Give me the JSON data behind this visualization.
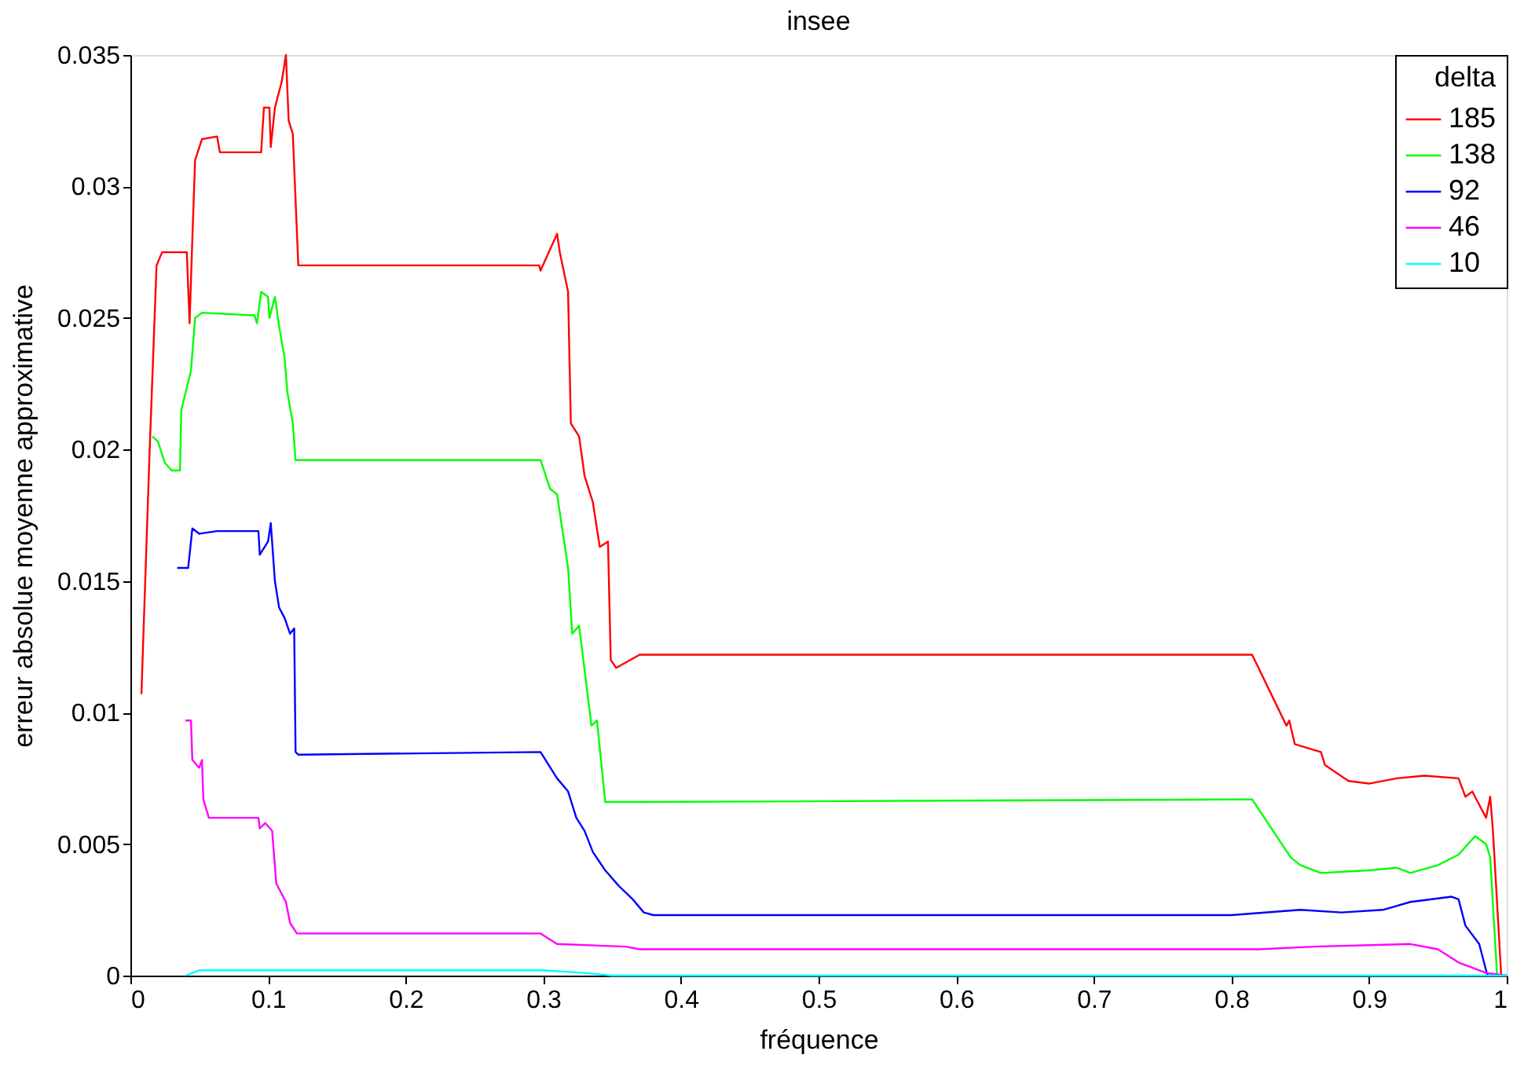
{
  "chart_data": {
    "type": "line",
    "title": "insee",
    "xlabel": "fréquence",
    "ylabel": "erreur absolue moyenne approximative",
    "legend_title": "delta",
    "legend": "top right",
    "grid": false,
    "line_style": "solid",
    "marker": "none",
    "xlim": [
      0,
      1
    ],
    "ylim": [
      0,
      0.035
    ],
    "xticks": [
      0,
      0.1,
      0.2,
      0.3,
      0.4,
      0.5,
      0.6,
      0.7,
      0.8,
      0.9,
      1
    ],
    "yticks": [
      0,
      0.005,
      0.01,
      0.015,
      0.02,
      0.025,
      0.03,
      0.035
    ],
    "series": [
      {
        "name": "185",
        "color": "#ff0000",
        "x": [
          0.008,
          0.014,
          0.019,
          0.023,
          0.041,
          0.043,
          0.045,
          0.047,
          0.052,
          0.063,
          0.065,
          0.095,
          0.097,
          0.101,
          0.102,
          0.105,
          0.11,
          0.113,
          0.115,
          0.118,
          0.122,
          0.297,
          0.298,
          0.31,
          0.312,
          0.318,
          0.32,
          0.326,
          0.33,
          0.336,
          0.341,
          0.347,
          0.349,
          0.353,
          0.37,
          0.815,
          0.84,
          0.842,
          0.846,
          0.865,
          0.868,
          0.885,
          0.9,
          0.92,
          0.94,
          0.965,
          0.97,
          0.975,
          0.985,
          0.988,
          0.99,
          0.996
        ],
        "values": [
          0.0107,
          0.02,
          0.027,
          0.0275,
          0.0275,
          0.0248,
          0.028,
          0.031,
          0.0318,
          0.0319,
          0.0313,
          0.0313,
          0.033,
          0.033,
          0.0315,
          0.033,
          0.034,
          0.035,
          0.0325,
          0.032,
          0.027,
          0.027,
          0.0268,
          0.0282,
          0.0275,
          0.026,
          0.021,
          0.0205,
          0.019,
          0.018,
          0.0163,
          0.0165,
          0.012,
          0.0117,
          0.0122,
          0.0122,
          0.0095,
          0.0097,
          0.0088,
          0.0085,
          0.008,
          0.0074,
          0.0073,
          0.0075,
          0.0076,
          0.0075,
          0.0068,
          0.007,
          0.006,
          0.0068,
          0.0055,
          0.0
        ]
      },
      {
        "name": "138",
        "color": "#00ff00",
        "x": [
          0.016,
          0.02,
          0.025,
          0.03,
          0.036,
          0.037,
          0.044,
          0.047,
          0.052,
          0.09,
          0.092,
          0.095,
          0.1,
          0.101,
          0.105,
          0.108,
          0.112,
          0.114,
          0.118,
          0.12,
          0.298,
          0.305,
          0.31,
          0.318,
          0.321,
          0.326,
          0.335,
          0.339,
          0.345,
          0.37,
          0.815,
          0.843,
          0.85,
          0.865,
          0.9,
          0.92,
          0.93,
          0.95,
          0.965,
          0.977,
          0.985,
          0.988,
          0.993
        ],
        "values": [
          0.0205,
          0.0203,
          0.0195,
          0.0192,
          0.0192,
          0.0215,
          0.023,
          0.025,
          0.0252,
          0.0251,
          0.0248,
          0.026,
          0.0258,
          0.025,
          0.0258,
          0.0247,
          0.0235,
          0.0222,
          0.021,
          0.0196,
          0.0196,
          0.0185,
          0.0183,
          0.0155,
          0.013,
          0.0133,
          0.0095,
          0.0097,
          0.0066,
          0.0066,
          0.0067,
          0.0045,
          0.0042,
          0.0039,
          0.004,
          0.0041,
          0.0039,
          0.0042,
          0.0046,
          0.0053,
          0.005,
          0.0045,
          0.0
        ]
      },
      {
        "name": "92",
        "color": "#0000ff",
        "x": [
          0.034,
          0.042,
          0.045,
          0.05,
          0.063,
          0.093,
          0.094,
          0.1,
          0.102,
          0.105,
          0.108,
          0.112,
          0.116,
          0.119,
          0.12,
          0.122,
          0.298,
          0.31,
          0.318,
          0.324,
          0.33,
          0.336,
          0.345,
          0.355,
          0.365,
          0.373,
          0.38,
          0.8,
          0.85,
          0.88,
          0.91,
          0.93,
          0.96,
          0.965,
          0.97,
          0.98,
          0.986,
          1
        ],
        "values": [
          0.0155,
          0.0155,
          0.017,
          0.0168,
          0.0169,
          0.0169,
          0.016,
          0.0165,
          0.0172,
          0.015,
          0.014,
          0.0136,
          0.013,
          0.0132,
          0.0085,
          0.0084,
          0.0085,
          0.0075,
          0.007,
          0.006,
          0.0055,
          0.0047,
          0.004,
          0.0034,
          0.0029,
          0.0024,
          0.0023,
          0.0023,
          0.0025,
          0.0024,
          0.0025,
          0.0028,
          0.003,
          0.0029,
          0.0019,
          0.0012,
          0.0,
          0.0
        ]
      },
      {
        "name": "46",
        "color": "#ff00ff",
        "x": [
          0.04,
          0.044,
          0.045,
          0.05,
          0.052,
          0.053,
          0.057,
          0.093,
          0.094,
          0.098,
          0.103,
          0.106,
          0.113,
          0.116,
          0.121,
          0.298,
          0.31,
          0.36,
          0.37,
          0.82,
          0.86,
          0.93,
          0.95,
          0.965,
          0.975,
          0.985,
          1
        ],
        "values": [
          0.0097,
          0.0097,
          0.0082,
          0.0079,
          0.0082,
          0.0067,
          0.006,
          0.006,
          0.0056,
          0.0058,
          0.0055,
          0.0035,
          0.0028,
          0.002,
          0.0016,
          0.0016,
          0.0012,
          0.0011,
          0.001,
          0.001,
          0.0011,
          0.0012,
          0.001,
          0.0005,
          0.0003,
          0.0001,
          0.0
        ]
      },
      {
        "name": "10",
        "color": "#00ffff",
        "x": [
          0.04,
          0.05,
          0.3,
          0.33,
          0.35,
          1
        ],
        "values": [
          0.0,
          0.0002,
          0.0002,
          0.0001,
          0.0,
          0.0
        ]
      }
    ]
  }
}
